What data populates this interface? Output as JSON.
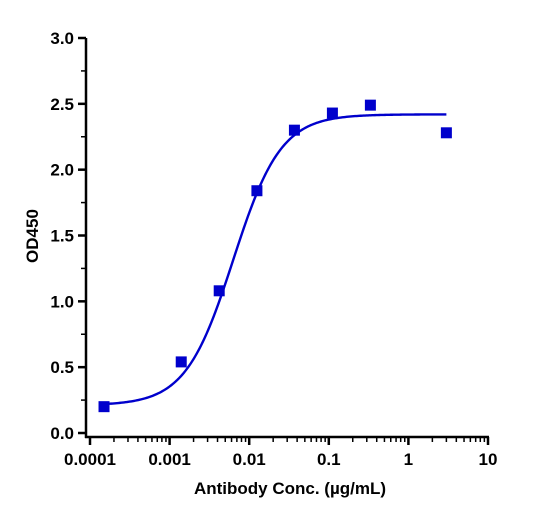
{
  "chart_data": {
    "type": "scatter",
    "title": "",
    "xlabel": "Antibody Conc. (µg/mL)",
    "ylabel": "OD450",
    "x_scale": "log",
    "xlim": [
      0.0001,
      10
    ],
    "ylim": [
      0,
      3.0
    ],
    "grid": false,
    "legend": "none",
    "x_ticks": [
      0.0001,
      0.001,
      0.01,
      0.1,
      1,
      10
    ],
    "x_tick_labels": [
      "0.0001",
      "0.001",
      "0.01",
      "0.1",
      "1",
      "10"
    ],
    "y_ticks": [
      0,
      0.5,
      1.0,
      1.5,
      2.0,
      2.5,
      3.0
    ],
    "y_tick_labels": [
      "0.0",
      "0.5",
      "1.0",
      "1.5",
      "2.0",
      "2.5",
      "3.0"
    ],
    "series": [
      {
        "kind": "points",
        "color": "#0000cc",
        "marker": "square",
        "x": [
          0.00015,
          0.0014,
          0.0042,
          0.0125,
          0.037,
          0.111,
          0.333,
          3.0
        ],
        "y": [
          0.2,
          0.54,
          1.08,
          1.84,
          2.3,
          2.43,
          2.49,
          2.28
        ]
      },
      {
        "kind": "fit-curve",
        "color": "#0000cc",
        "model": "four-parameter-logistic",
        "bottom": 0.21,
        "top": 2.42,
        "ec50": 0.0063,
        "hill": 1.45,
        "x_range": [
          0.00015,
          3.0
        ]
      }
    ]
  }
}
